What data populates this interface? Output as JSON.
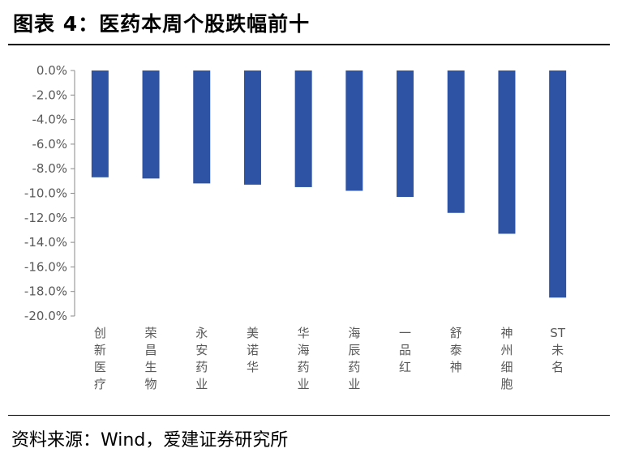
{
  "title": "图表 4：医药本周个股跌幅前十",
  "source": "资料来源：Wind，爱建证券研究所",
  "colors": {
    "bar": "#2E53A4",
    "axis": "#888888",
    "text": "#595959"
  },
  "chart_data": {
    "type": "bar",
    "categories": [
      "创新医疗",
      "荣昌生物",
      "永安药业",
      "美诺华",
      "华海药业",
      "海辰药业",
      "一品红",
      "舒泰神",
      "神州细胞",
      "ST未名"
    ],
    "values": [
      -8.7,
      -8.8,
      -9.2,
      -9.3,
      -9.5,
      -9.8,
      -10.3,
      -11.6,
      -13.3,
      -18.5
    ],
    "ylim": [
      -20,
      0
    ],
    "yticks": [
      "0.0%",
      "-2.0%",
      "-4.0%",
      "-6.0%",
      "-8.0%",
      "-10.0%",
      "-12.0%",
      "-14.0%",
      "-16.0%",
      "-18.0%",
      "-20.0%"
    ],
    "ytick_values": [
      0,
      -2,
      -4,
      -6,
      -8,
      -10,
      -12,
      -14,
      -16,
      -18,
      -20
    ],
    "grid": false,
    "legend": "none"
  }
}
